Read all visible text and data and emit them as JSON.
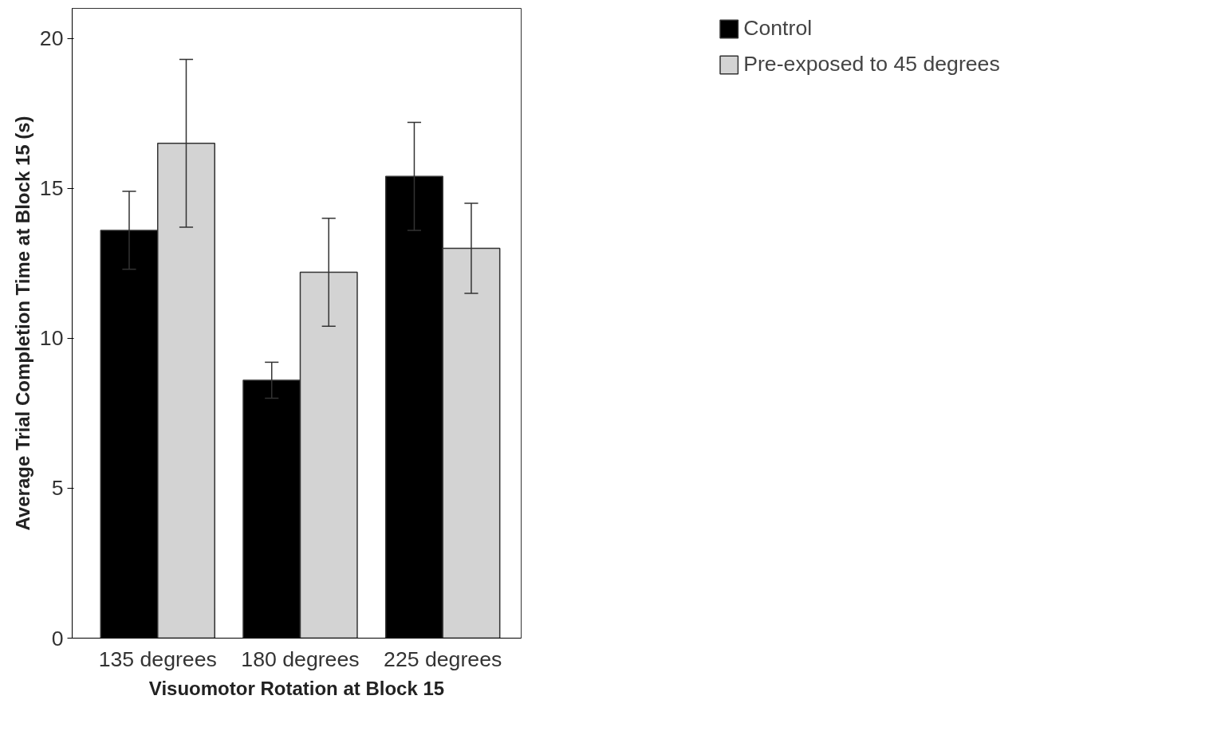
{
  "chart_data": {
    "type": "bar",
    "xlabel": "Visuomotor Rotation at Block 15",
    "ylabel": "Average Trial Completion Time at Block 15 (s)",
    "categories": [
      "135 degrees",
      "180 degrees",
      "225 degrees"
    ],
    "series": [
      {
        "name": "Control",
        "color": "#000000",
        "values": [
          13.6,
          8.6,
          15.4
        ],
        "errors": [
          1.3,
          0.6,
          1.8
        ]
      },
      {
        "name": "Pre-exposed to 45 degrees",
        "color": "#d3d3d3",
        "values": [
          16.5,
          12.2,
          13.0
        ],
        "errors": [
          2.8,
          1.8,
          1.5
        ]
      }
    ],
    "ylim": [
      0,
      21
    ],
    "yticks": [
      0,
      5,
      10,
      15,
      20
    ],
    "grid": false,
    "legend": "top right"
  }
}
